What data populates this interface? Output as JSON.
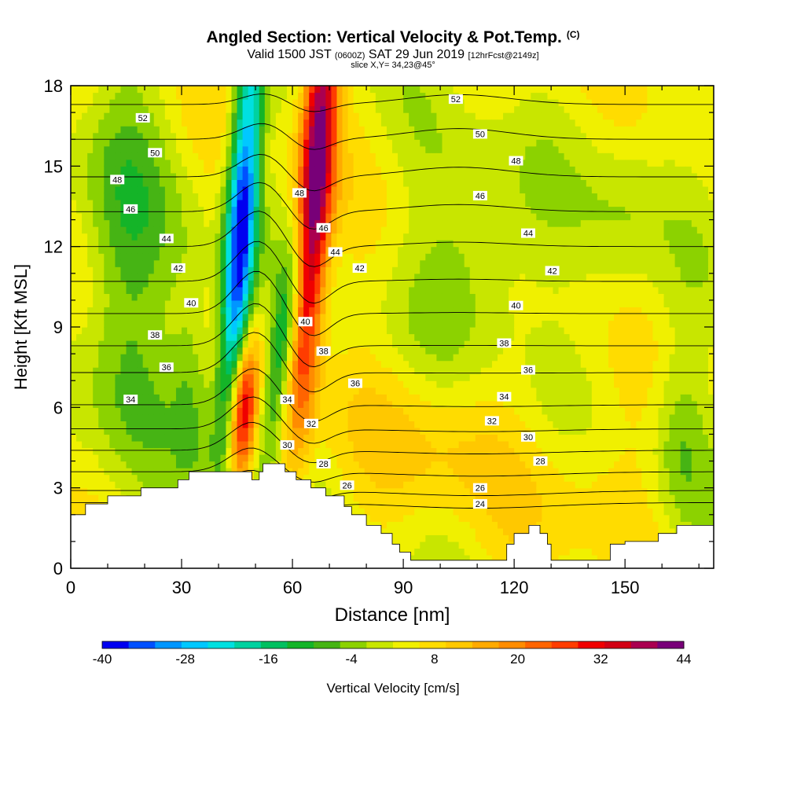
{
  "header": {
    "title": "Angled Section: Vertical Velocity & Pot.Temp.",
    "title_unit": "(C)",
    "valid_prefix": "Valid 1500 JST",
    "valid_utc": "(0600Z)",
    "valid_date": "SAT 29 Jun 2019",
    "forecast": "[12hrFcst@2149z]",
    "slice": "slice X,Y= 34,23@45°"
  },
  "chart_data": {
    "type": "heatmap",
    "xlabel": "Distance [nm]",
    "ylabel": "Height [Kft MSL]",
    "xlim": [
      0,
      174
    ],
    "ylim": [
      0,
      18
    ],
    "x_ticks": [
      0,
      30,
      60,
      90,
      120,
      150
    ],
    "y_ticks": [
      0,
      3,
      6,
      9,
      12,
      15,
      18
    ],
    "colorbar": {
      "label": "Vertical Velocity [cm/s]",
      "min": -40,
      "max": 44,
      "step": 4,
      "tick_labels": [
        "-40",
        "-28",
        "-16",
        "-4",
        "8",
        "20",
        "32",
        "44"
      ],
      "colors": [
        "#0000f0",
        "#0050ff",
        "#0096ff",
        "#00c8ff",
        "#00e0e0",
        "#00d2a0",
        "#00c060",
        "#14b428",
        "#46b414",
        "#8cd200",
        "#c8e600",
        "#f0f000",
        "#ffdc00",
        "#ffc800",
        "#ffaa00",
        "#ff8c00",
        "#ff6400",
        "#ff3c00",
        "#f00000",
        "#d20014",
        "#aa0050",
        "#780078"
      ]
    },
    "velocity_features": [
      {
        "kind": "downdraft",
        "x_top": 46,
        "x_bottom": 40,
        "y_range": [
          4.5,
          18
        ],
        "peak_cms": -36
      },
      {
        "kind": "updraft",
        "x_top": 68,
        "x_bottom": 50,
        "y_range": [
          3.5,
          18
        ],
        "peak_cms": 36
      },
      {
        "kind": "updraft",
        "x_top": 48,
        "x_bottom": 44,
        "y_range": [
          3.5,
          8
        ],
        "peak_cms": 28
      },
      {
        "kind": "downdraft",
        "x_top": 60,
        "x_bottom": 38,
        "y_range": [
          5,
          12
        ],
        "peak_cms": -14
      },
      {
        "kind": "weak_updraft",
        "x_center": 100,
        "y_center": 5,
        "peak_cms": 12
      }
    ],
    "terrain": [
      [
        0,
        2
      ],
      [
        4,
        2
      ],
      [
        4,
        2.4
      ],
      [
        10,
        2.4
      ],
      [
        10,
        2.7
      ],
      [
        19,
        2.7
      ],
      [
        19,
        3
      ],
      [
        29,
        3
      ],
      [
        29,
        3.3
      ],
      [
        32,
        3.3
      ],
      [
        32,
        3.6
      ],
      [
        49,
        3.6
      ],
      [
        49,
        3.3
      ],
      [
        51,
        3.3
      ],
      [
        51,
        3.6
      ],
      [
        52,
        3.6
      ],
      [
        52,
        3.9
      ],
      [
        58,
        3.9
      ],
      [
        58,
        3.6
      ],
      [
        61,
        3.6
      ],
      [
        61,
        3.3
      ],
      [
        65,
        3.3
      ],
      [
        65,
        3.0
      ],
      [
        69,
        3.0
      ],
      [
        69,
        2.7
      ],
      [
        74,
        2.7
      ],
      [
        74,
        2.3
      ],
      [
        76,
        2.3
      ],
      [
        76,
        2.0
      ],
      [
        80,
        2.0
      ],
      [
        80,
        1.6
      ],
      [
        84,
        1.6
      ],
      [
        84,
        1.3
      ],
      [
        87,
        1.3
      ],
      [
        87,
        0.9
      ],
      [
        89,
        0.9
      ],
      [
        89,
        0.6
      ],
      [
        92,
        0.6
      ],
      [
        92,
        0.3
      ],
      [
        118,
        0.3
      ],
      [
        118,
        0.9
      ],
      [
        120,
        0.9
      ],
      [
        120,
        1.3
      ],
      [
        124,
        1.3
      ],
      [
        124,
        1.6
      ],
      [
        127,
        1.6
      ],
      [
        127,
        1.3
      ],
      [
        129,
        1.3
      ],
      [
        129,
        0.9
      ],
      [
        130,
        0.9
      ],
      [
        130,
        0.3
      ],
      [
        146,
        0.3
      ],
      [
        146,
        0.9
      ],
      [
        150,
        0.9
      ],
      [
        150,
        1.0
      ],
      [
        159,
        1.0
      ],
      [
        159,
        1.3
      ],
      [
        164,
        1.3
      ],
      [
        164,
        1.6
      ],
      [
        174,
        1.6
      ]
    ],
    "theta_contours": [
      {
        "value": "24",
        "y": 2.45
      },
      {
        "value": "26",
        "y": 2.9
      },
      {
        "value": "28",
        "y": 3.6
      },
      {
        "value": "30",
        "y": 4.4
      },
      {
        "value": "32",
        "y": 5.2
      },
      {
        "value": "34",
        "y": 6.1
      },
      {
        "value": "36",
        "y": 7.3
      },
      {
        "value": "38",
        "y": 8.3
      },
      {
        "value": "40",
        "y": 9.5
      },
      {
        "value": "42",
        "y": 10.7
      },
      {
        "value": "44",
        "y": 12.0
      },
      {
        "value": "46",
        "y": 13.3
      },
      {
        "value": "48",
        "y": 14.6
      },
      {
        "value": "50",
        "y": 16.0
      },
      {
        "value": "52",
        "y": 17.3
      }
    ],
    "contour_labels": [
      {
        "t": "52",
        "x": 19.5,
        "y": 16.8
      },
      {
        "t": "50",
        "x": 22.8,
        "y": 15.5
      },
      {
        "t": "48",
        "x": 12.6,
        "y": 14.5
      },
      {
        "t": "46",
        "x": 16.2,
        "y": 13.4
      },
      {
        "t": "44",
        "x": 25.9,
        "y": 12.3
      },
      {
        "t": "42",
        "x": 29.1,
        "y": 11.2
      },
      {
        "t": "40",
        "x": 32.6,
        "y": 9.9
      },
      {
        "t": "38",
        "x": 22.8,
        "y": 8.7
      },
      {
        "t": "36",
        "x": 25.9,
        "y": 7.5
      },
      {
        "t": "34",
        "x": 16.2,
        "y": 6.3
      },
      {
        "t": "48",
        "x": 61.9,
        "y": 14.0
      },
      {
        "t": "46",
        "x": 68.4,
        "y": 12.7
      },
      {
        "t": "44",
        "x": 71.6,
        "y": 11.8
      },
      {
        "t": "42",
        "x": 78.2,
        "y": 11.2
      },
      {
        "t": "40",
        "x": 63.5,
        "y": 9.2
      },
      {
        "t": "38",
        "x": 68.4,
        "y": 8.1
      },
      {
        "t": "36",
        "x": 77.0,
        "y": 6.9
      },
      {
        "t": "34",
        "x": 58.6,
        "y": 6.3
      },
      {
        "t": "32",
        "x": 65.1,
        "y": 5.4
      },
      {
        "t": "30",
        "x": 58.6,
        "y": 4.6
      },
      {
        "t": "28",
        "x": 68.4,
        "y": 3.9
      },
      {
        "t": "26",
        "x": 74.8,
        "y": 3.1
      },
      {
        "t": "52",
        "x": 104.2,
        "y": 17.5
      },
      {
        "t": "50",
        "x": 110.8,
        "y": 16.2
      },
      {
        "t": "48",
        "x": 120.5,
        "y": 15.2
      },
      {
        "t": "46",
        "x": 110.8,
        "y": 13.9
      },
      {
        "t": "44",
        "x": 123.8,
        "y": 12.5
      },
      {
        "t": "42",
        "x": 130.3,
        "y": 11.1
      },
      {
        "t": "40",
        "x": 120.5,
        "y": 9.8
      },
      {
        "t": "38",
        "x": 117.3,
        "y": 8.4
      },
      {
        "t": "36",
        "x": 123.8,
        "y": 7.4
      },
      {
        "t": "34",
        "x": 117.3,
        "y": 6.4
      },
      {
        "t": "32",
        "x": 114.0,
        "y": 5.5
      },
      {
        "t": "30",
        "x": 123.8,
        "y": 4.9
      },
      {
        "t": "28",
        "x": 127.1,
        "y": 4.0
      },
      {
        "t": "26",
        "x": 110.8,
        "y": 3.0
      },
      {
        "t": "24",
        "x": 110.8,
        "y": 2.4
      }
    ]
  }
}
